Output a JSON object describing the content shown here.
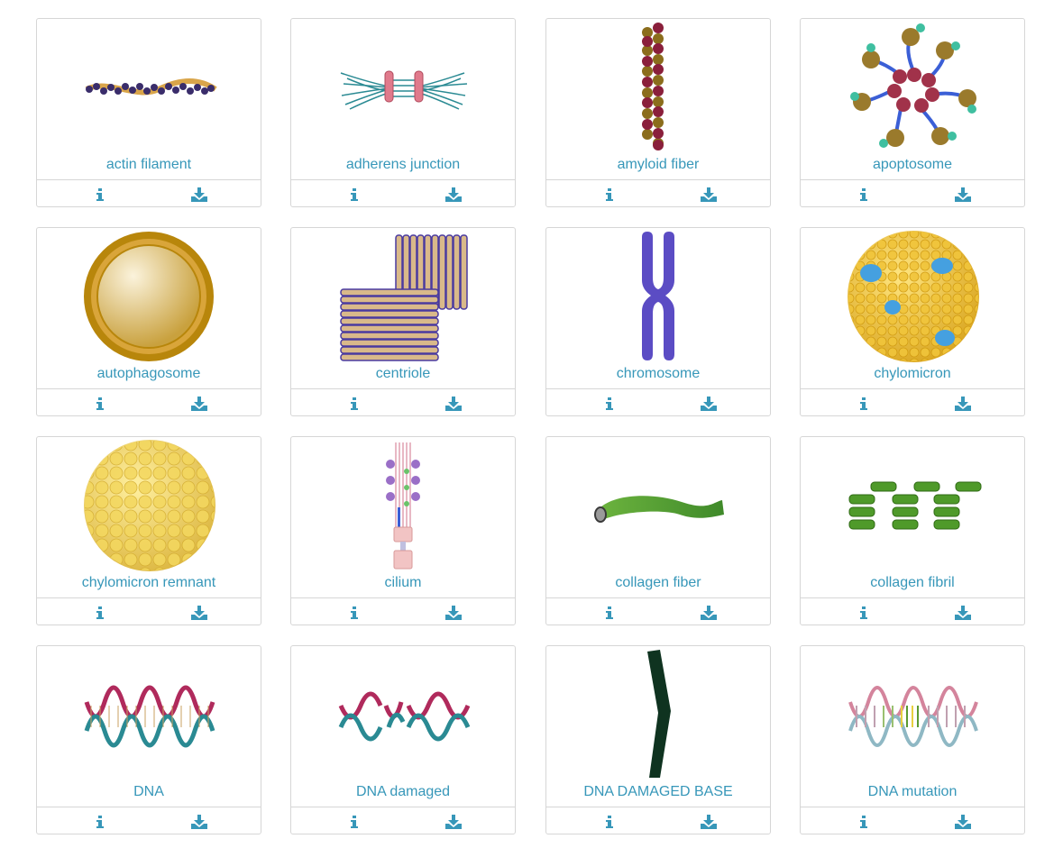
{
  "colors": {
    "accent": "#3797b9",
    "border": "#d6d6d6"
  },
  "icons": {
    "info": "info-icon",
    "download": "download-icon"
  },
  "items": [
    {
      "label": "actin filament"
    },
    {
      "label": "adherens junction"
    },
    {
      "label": "amyloid fiber"
    },
    {
      "label": "apoptosome"
    },
    {
      "label": "autophagosome"
    },
    {
      "label": "centriole"
    },
    {
      "label": "chromosome"
    },
    {
      "label": "chylomicron"
    },
    {
      "label": "chylomicron remnant"
    },
    {
      "label": "cilium"
    },
    {
      "label": "collagen fiber"
    },
    {
      "label": "collagen fibril"
    },
    {
      "label": "DNA"
    },
    {
      "label": "DNA damaged"
    },
    {
      "label": "DNA DAMAGED BASE"
    },
    {
      "label": "DNA mutation"
    }
  ]
}
